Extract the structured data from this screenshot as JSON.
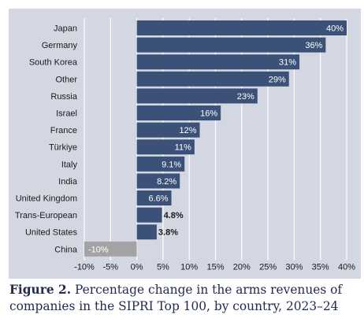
{
  "chart_data": {
    "type": "bar",
    "orientation": "horizontal",
    "categories": [
      "Japan",
      "Germany",
      "South Korea",
      "Other",
      "Russia",
      "Israel",
      "France",
      "Türkiye",
      "Italy",
      "India",
      "United Kingdom",
      "Trans-European",
      "United States",
      "China"
    ],
    "values": [
      40,
      36,
      31,
      29,
      23,
      16,
      12,
      11,
      9.1,
      8.2,
      6.6,
      4.8,
      3.8,
      -10
    ],
    "value_labels": [
      "40%",
      "36%",
      "31%",
      "29%",
      "23%",
      "16%",
      "12%",
      "11%",
      "9.1%",
      "8.2%",
      "6.6%",
      "4.8%",
      "3.8%",
      "-10%"
    ],
    "xlim": [
      -10,
      40
    ],
    "xticks": [
      -10,
      -5,
      0,
      5,
      10,
      15,
      20,
      25,
      30,
      35,
      40
    ],
    "xtick_labels": [
      "-10%",
      "-5%",
      "0%",
      "5%",
      "10%",
      "15%",
      "20%",
      "25%",
      "30%",
      "35%",
      "40%"
    ],
    "grid": true,
    "colors": {
      "positive": "#3b5177",
      "negative": "#a3a3a3",
      "background": "#d3d7e2",
      "grid": "#ffffff",
      "text": "#1a1a1a",
      "label_inside": "#ffffff"
    }
  },
  "caption": {
    "label": "Figure 2.",
    "text": "Percentage change in the arms revenues of companies in the SIPRI Top 100, by country, 2023–24"
  }
}
